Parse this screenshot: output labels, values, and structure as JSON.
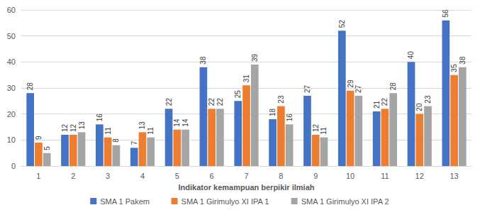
{
  "chart_data": {
    "type": "bar",
    "x_label": "Indikator kemampuan berpikir ilmiah",
    "categories": [
      "1",
      "2",
      "3",
      "4",
      "5",
      "6",
      "7",
      "8",
      "9",
      "10",
      "11",
      "12",
      "13"
    ],
    "series": [
      {
        "name": "SMA 1 Pakem",
        "color": "#4472c4",
        "values": [
          28,
          12,
          16,
          7,
          22,
          38,
          25,
          18,
          27,
          52,
          21,
          40,
          56
        ]
      },
      {
        "name": "SMA 1 Girimulyo XI IPA 1",
        "color": "#ed7d31",
        "values": [
          9,
          12,
          11,
          13,
          14,
          22,
          31,
          23,
          12,
          29,
          22,
          20,
          35
        ]
      },
      {
        "name": "SMA 1 Girimulyo XI IPA 2",
        "color": "#a5a5a5",
        "values": [
          5,
          13,
          8,
          11,
          14,
          22,
          39,
          16,
          11,
          27,
          28,
          23,
          38
        ]
      }
    ],
    "ylim": [
      0,
      60
    ],
    "yticks": [
      0,
      10,
      20,
      30,
      40,
      50,
      60
    ],
    "grid": true,
    "legend": "bottom",
    "data_labels": true
  }
}
